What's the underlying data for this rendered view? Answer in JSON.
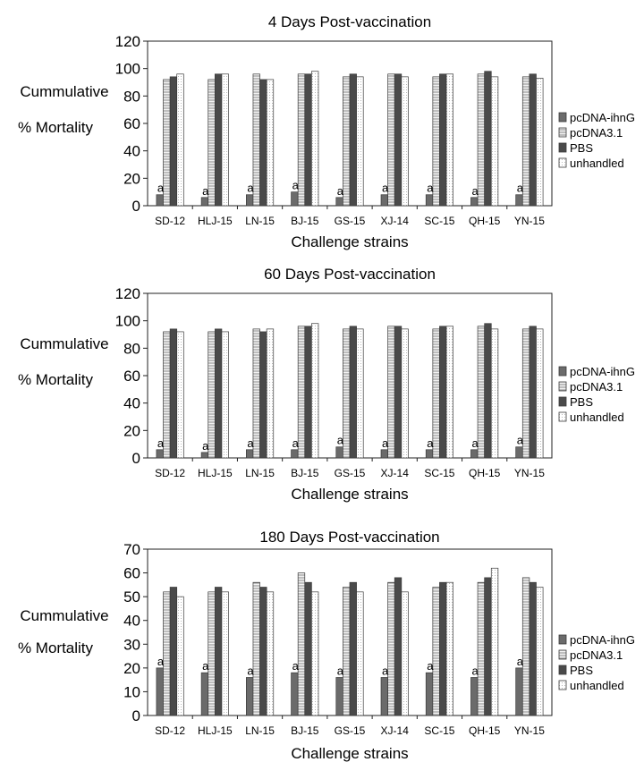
{
  "chart_data": [
    {
      "type": "bar",
      "title": "4 Days Post-vaccination",
      "xlabel": "Challenge strains",
      "ylabel": [
        "Cummulative",
        "% Mortality"
      ],
      "ylim": [
        0,
        120
      ],
      "yticks": [
        0,
        20,
        40,
        60,
        80,
        100,
        120
      ],
      "categories": [
        "SD-12",
        "HLJ-15",
        "LN-15",
        "BJ-15",
        "GS-15",
        "XJ-14",
        "SC-15",
        "QH-15",
        "YN-15"
      ],
      "series": [
        {
          "name": "pcDNA-ihnG",
          "values": [
            8,
            6,
            8,
            10,
            6,
            8,
            8,
            6,
            8
          ]
        },
        {
          "name": "pcDNA3.1",
          "values": [
            92,
            92,
            96,
            96,
            94,
            96,
            94,
            96,
            94
          ]
        },
        {
          "name": "PBS",
          "values": [
            94,
            96,
            92,
            96,
            96,
            96,
            96,
            98,
            96
          ]
        },
        {
          "name": "unhandled",
          "values": [
            96,
            96,
            92,
            98,
            94,
            94,
            96,
            94,
            93
          ]
        }
      ],
      "annotations": [
        "a",
        "a",
        "a",
        "a",
        "a",
        "a",
        "a",
        "a",
        "a"
      ],
      "legend": "right",
      "grid": false
    },
    {
      "type": "bar",
      "title": "60 Days Post-vaccination",
      "xlabel": "Challenge strains",
      "ylabel": [
        "Cummulative",
        "% Mortality"
      ],
      "ylim": [
        0,
        120
      ],
      "yticks": [
        0,
        20,
        40,
        60,
        80,
        100,
        120
      ],
      "categories": [
        "SD-12",
        "HLJ-15",
        "LN-15",
        "BJ-15",
        "GS-15",
        "XJ-14",
        "SC-15",
        "QH-15",
        "YN-15"
      ],
      "series": [
        {
          "name": "pcDNA-ihnG",
          "values": [
            6,
            4,
            6,
            6,
            8,
            6,
            6,
            6,
            8
          ]
        },
        {
          "name": "pcDNA3.1",
          "values": [
            92,
            92,
            94,
            96,
            94,
            96,
            94,
            96,
            94
          ]
        },
        {
          "name": "PBS",
          "values": [
            94,
            94,
            92,
            96,
            96,
            96,
            96,
            98,
            96
          ]
        },
        {
          "name": "unhandled",
          "values": [
            92,
            92,
            94,
            98,
            94,
            94,
            96,
            94,
            94
          ]
        }
      ],
      "annotations": [
        "a",
        "a",
        "a",
        "a",
        "a",
        "a",
        "a",
        "a",
        "a"
      ],
      "legend": "right",
      "grid": false
    },
    {
      "type": "bar",
      "title": "180 Days Post-vaccination",
      "xlabel": "Challenge strains",
      "ylabel": [
        "Cummulative",
        "% Mortality"
      ],
      "ylim": [
        0,
        70
      ],
      "yticks": [
        0,
        10,
        20,
        30,
        40,
        50,
        60,
        70
      ],
      "categories": [
        "SD-12",
        "HLJ-15",
        "LN-15",
        "BJ-15",
        "GS-15",
        "XJ-14",
        "SC-15",
        "QH-15",
        "YN-15"
      ],
      "series": [
        {
          "name": "pcDNA-ihnG",
          "values": [
            20,
            18,
            16,
            18,
            16,
            16,
            18,
            16,
            20
          ]
        },
        {
          "name": "pcDNA3.1",
          "values": [
            52,
            52,
            56,
            60,
            54,
            56,
            54,
            56,
            58
          ]
        },
        {
          "name": "PBS",
          "values": [
            54,
            54,
            54,
            56,
            56,
            58,
            56,
            58,
            56
          ]
        },
        {
          "name": "unhandled",
          "values": [
            50,
            52,
            52,
            52,
            52,
            52,
            56,
            62,
            54
          ]
        }
      ],
      "annotations": [
        "a",
        "a",
        "a",
        "a",
        "a",
        "a",
        "a",
        "a",
        "a"
      ],
      "legend": "right",
      "grid": false
    }
  ]
}
